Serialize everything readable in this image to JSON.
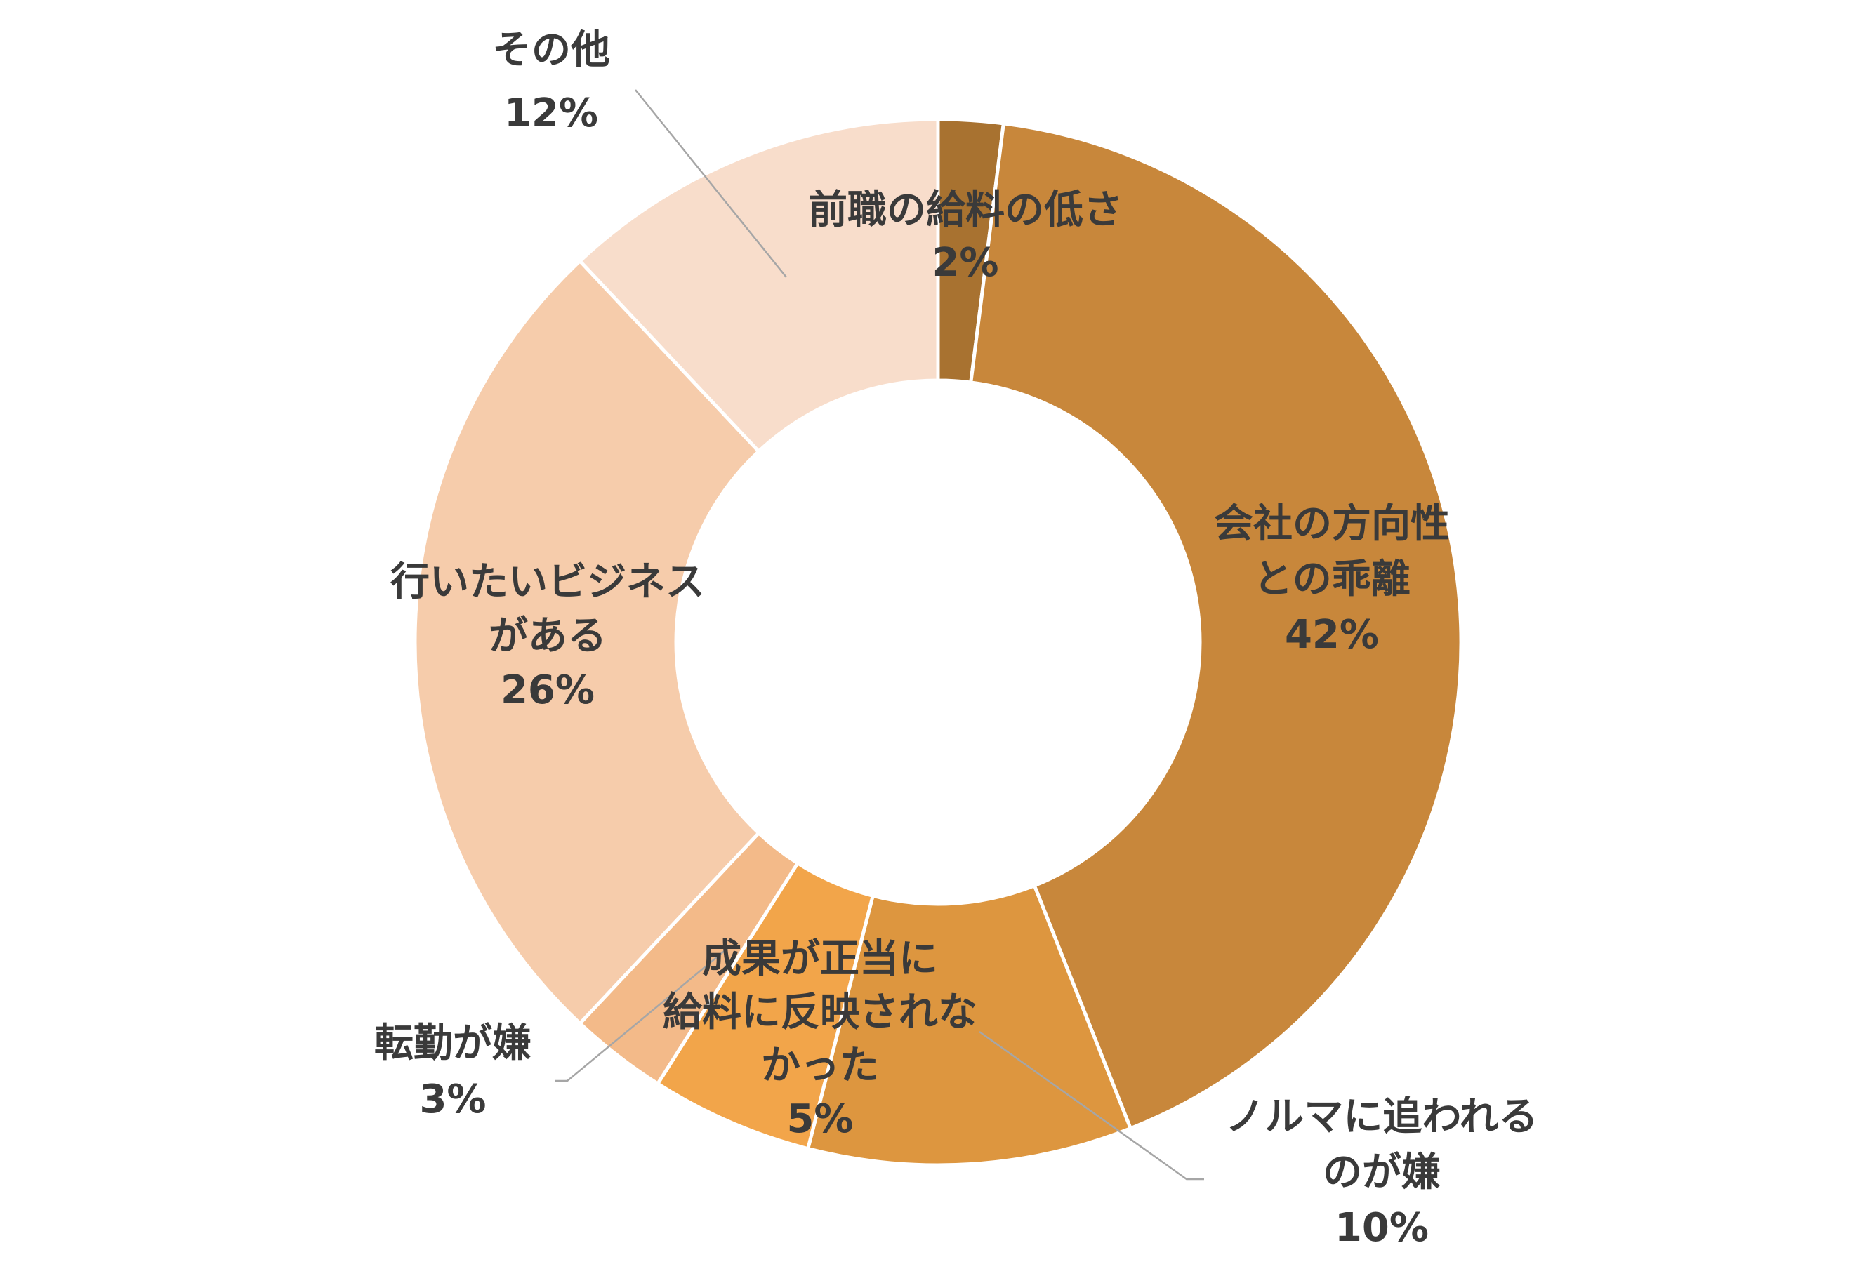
{
  "chart_data": {
    "type": "pie",
    "variant": "donut",
    "slices": [
      {
        "label": [
          "前職の給料の低さ"
        ],
        "value": 2,
        "value_label": "2%",
        "color": "#A87230"
      },
      {
        "label": [
          "会社の方向性",
          "との乖離"
        ],
        "value": 42,
        "value_label": "42%",
        "color": "#C8873B"
      },
      {
        "label": [
          "ノルマに追われる",
          "のが嫌"
        ],
        "value": 10,
        "value_label": "10%",
        "color": "#DD963F"
      },
      {
        "label": [
          "成果が正当に",
          "給料に反映されな",
          "かった"
        ],
        "value": 5,
        "value_label": "5%",
        "color": "#F2A54A"
      },
      {
        "label": [
          "転勤が嫌"
        ],
        "value": 3,
        "value_label": "3%",
        "color": "#F3BA89"
      },
      {
        "label": [
          "行いたいビジネス",
          "がある"
        ],
        "value": 26,
        "value_label": "26%",
        "color": "#F6CCAB"
      },
      {
        "label": [
          "その他"
        ],
        "value": 12,
        "value_label": "12%",
        "color": "#F8DDCB"
      }
    ],
    "start_angle_deg": 0,
    "direction": "clockwise",
    "legend": "none"
  }
}
